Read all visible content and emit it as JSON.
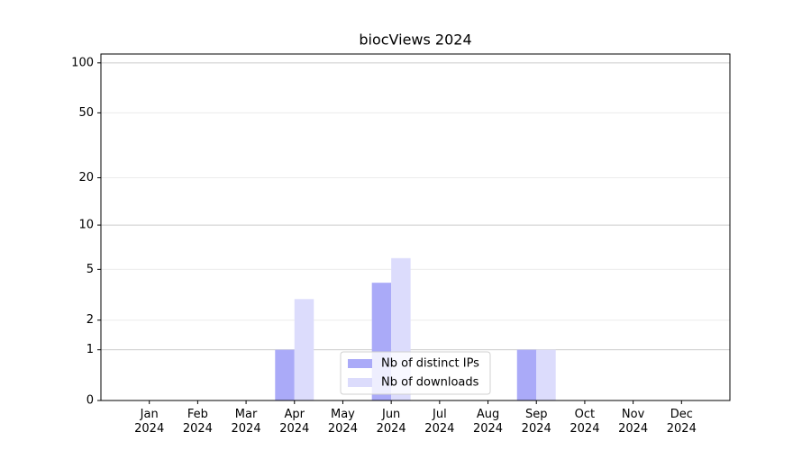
{
  "chart_data": {
    "type": "bar",
    "title": "biocViews 2024",
    "categories": [
      "Jan\n2024",
      "Feb\n2024",
      "Mar\n2024",
      "Apr\n2024",
      "May\n2024",
      "Jun\n2024",
      "Jul\n2024",
      "Aug\n2024",
      "Sep\n2024",
      "Oct\n2024",
      "Nov\n2024",
      "Dec\n2024"
    ],
    "series": [
      {
        "name": "Nb of distinct IPs",
        "color": "#aaaaf8",
        "values": [
          0,
          0,
          0,
          1,
          0,
          4,
          0,
          0,
          1,
          0,
          0,
          0
        ]
      },
      {
        "name": "Nb of downloads",
        "color": "#dcdcfc",
        "values": [
          0,
          0,
          0,
          3,
          0,
          6,
          0,
          0,
          1,
          0,
          0,
          0
        ]
      }
    ],
    "ylim": [
      0,
      113
    ],
    "yticks": [
      0,
      1,
      2,
      5,
      10,
      20,
      50,
      100
    ],
    "yscale": "log1p",
    "grid": true,
    "legend": "lower center"
  }
}
